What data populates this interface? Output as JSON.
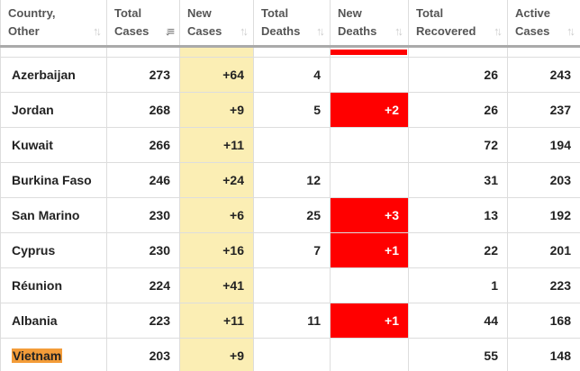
{
  "headers": [
    {
      "label": "Country,\nOther",
      "sort_icon": "sort-icon",
      "active": false
    },
    {
      "label": "Total\nCases",
      "sort_icon": "sort-desc-icon",
      "active": true
    },
    {
      "label": "New\nCases",
      "sort_icon": "sort-icon",
      "active": false
    },
    {
      "label": "Total\nDeaths",
      "sort_icon": "sort-icon",
      "active": false
    },
    {
      "label": "New\nDeaths",
      "sort_icon": "sort-icon",
      "active": false
    },
    {
      "label": "Total\nRecovered",
      "sort_icon": "sort-icon",
      "active": false
    },
    {
      "label": "Active\nCases",
      "sort_icon": "sort-icon",
      "active": false
    }
  ],
  "colors": {
    "new_cases_bg": "#fbeeb4",
    "new_deaths_bg": "#ff0000",
    "highlight": "#f39c39"
  },
  "rows": [
    {
      "country": "Azerbaijan",
      "total_cases": "273",
      "new_cases": "+64",
      "total_deaths": "4",
      "new_deaths": "",
      "total_recovered": "26",
      "active_cases": "243"
    },
    {
      "country": "Jordan",
      "total_cases": "268",
      "new_cases": "+9",
      "total_deaths": "5",
      "new_deaths": "+2",
      "total_recovered": "26",
      "active_cases": "237"
    },
    {
      "country": "Kuwait",
      "total_cases": "266",
      "new_cases": "+11",
      "total_deaths": "",
      "new_deaths": "",
      "total_recovered": "72",
      "active_cases": "194"
    },
    {
      "country": "Burkina Faso",
      "total_cases": "246",
      "new_cases": "+24",
      "total_deaths": "12",
      "new_deaths": "",
      "total_recovered": "31",
      "active_cases": "203"
    },
    {
      "country": "San Marino",
      "total_cases": "230",
      "new_cases": "+6",
      "total_deaths": "25",
      "new_deaths": "+3",
      "total_recovered": "13",
      "active_cases": "192"
    },
    {
      "country": "Cyprus",
      "total_cases": "230",
      "new_cases": "+16",
      "total_deaths": "7",
      "new_deaths": "+1",
      "total_recovered": "22",
      "active_cases": "201"
    },
    {
      "country": "Réunion",
      "total_cases": "224",
      "new_cases": "+41",
      "total_deaths": "",
      "new_deaths": "",
      "total_recovered": "1",
      "active_cases": "223"
    },
    {
      "country": "Albania",
      "total_cases": "223",
      "new_cases": "+11",
      "total_deaths": "11",
      "new_deaths": "+1",
      "total_recovered": "44",
      "active_cases": "168"
    },
    {
      "country": "Vietnam",
      "country_highlighted": true,
      "total_cases": "203",
      "new_cases": "+9",
      "total_deaths": "",
      "new_deaths": "",
      "total_recovered": "55",
      "active_cases": "148"
    }
  ]
}
